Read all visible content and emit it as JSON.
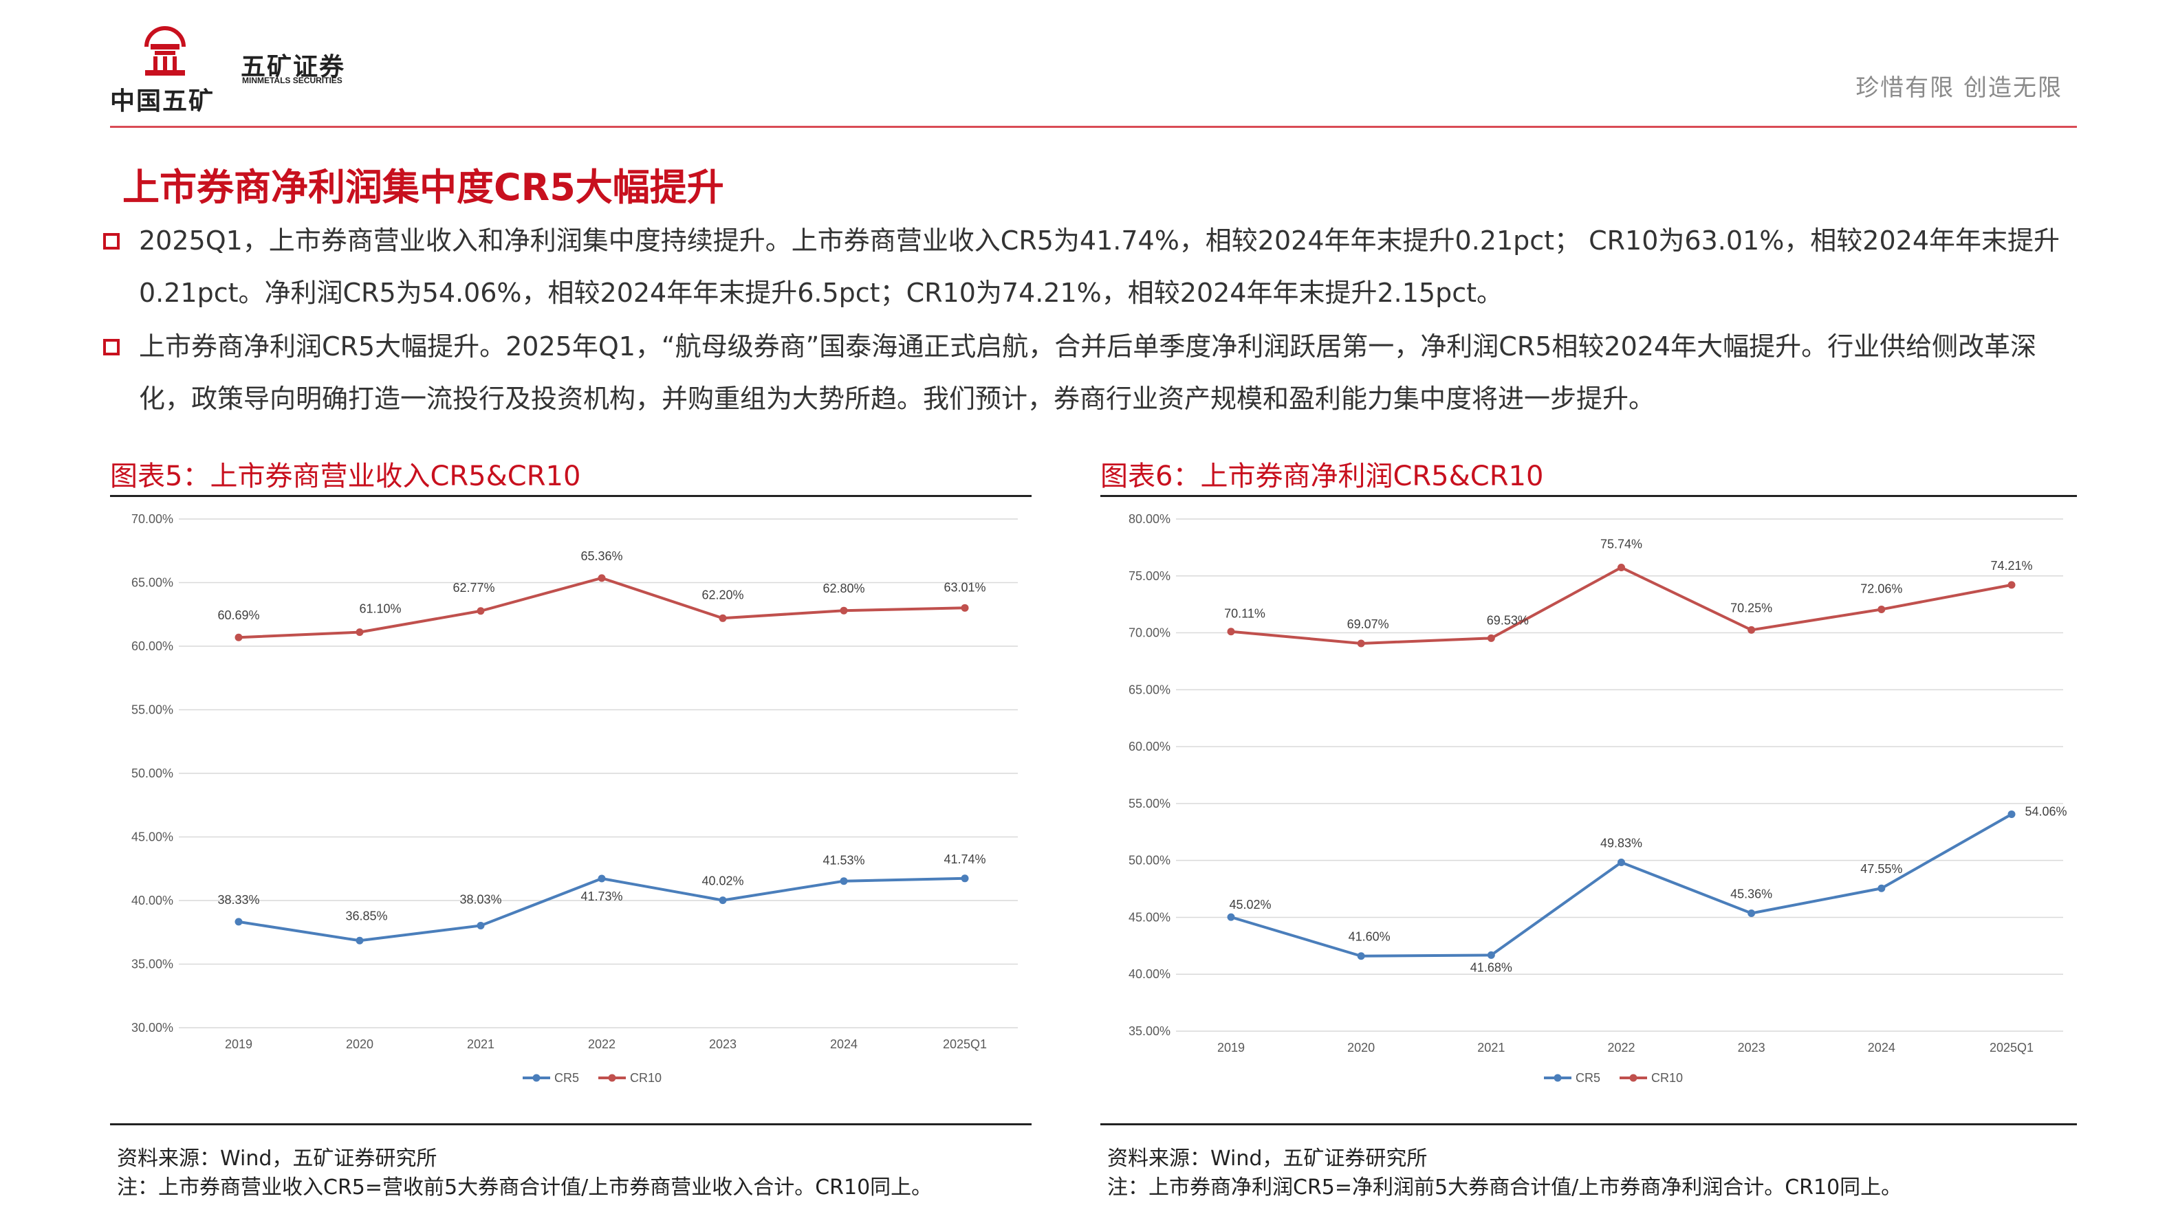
{
  "header": {
    "logo_cn": "中国五矿",
    "brand_cn": "五矿证券",
    "brand_en": "MINMETALS SECURITIES",
    "slogan": "珍惜有限  创造无限",
    "accent_color": "#c8101e"
  },
  "page_title": "上市券商净利润集中度CR5大幅提升",
  "bullets": [
    "2025Q1，上市券商营业收入和净利润集中度持续提升。上市券商营业收入CR5为41.74%，相较2024年年末提升0.21pct；  CR10为63.01%，相较2024年年末提升0.21pct。净利润CR5为54.06%，相较2024年年末提升6.5pct；CR10为74.21%，相较2024年年末提升2.15pct。",
    "上市券商净利润CR5大幅提升。2025年Q1，“航母级券商”国泰海通正式启航，合并后单季度净利润跃居第一，净利润CR5相较2024年大幅提升。行业供给侧改革深化，政策导向明确打造一流投行及投资机构，并购重组为大势所趋。我们预计，券商行业资产规模和盈利能力集中度将进一步提升。"
  ],
  "charts": [
    {
      "caption": "图表5：上市券商营业收入CR5&CR10",
      "source": "资料来源：Wind，五矿证券研究所",
      "note": "注：上市券商营业收入CR5=营收前5大券商合计值/上市券商营业收入合计。CR10同上。"
    },
    {
      "caption": "图表6：上市券商净利润CR5&CR10",
      "source": "资料来源：Wind，五矿证券研究所",
      "note": "注：上市券商净利润CR5=净利润前5大券商合计值/上市券商净利润合计。CR10同上。"
    }
  ],
  "chart_data": [
    {
      "type": "line",
      "categories": [
        "2019",
        "2020",
        "2021",
        "2022",
        "2023",
        "2024",
        "2025Q1"
      ],
      "series": [
        {
          "name": "CR5",
          "color": "#4a7ebb",
          "values": [
            38.33,
            36.85,
            38.03,
            41.73,
            40.02,
            41.53,
            41.74
          ],
          "labels": [
            "38.33%",
            "36.85%",
            "38.03%",
            "41.73%",
            "40.02%",
            "41.53%",
            "41.74%"
          ]
        },
        {
          "name": "CR10",
          "color": "#c0504d",
          "values": [
            60.69,
            61.1,
            62.77,
            65.36,
            62.2,
            62.8,
            63.01
          ],
          "labels": [
            "60.69%",
            "61.10%",
            "62.77%",
            "65.36%",
            "62.20%",
            "62.80%",
            "63.01%"
          ]
        }
      ],
      "ylim": [
        30,
        70
      ],
      "yticks": [
        "30.00%",
        "35.00%",
        "40.00%",
        "45.00%",
        "50.00%",
        "55.00%",
        "60.00%",
        "65.00%",
        "70.00%"
      ],
      "grid": true,
      "legend": "bottom"
    },
    {
      "type": "line",
      "categories": [
        "2019",
        "2020",
        "2021",
        "2022",
        "2023",
        "2024",
        "2025Q1"
      ],
      "series": [
        {
          "name": "CR5",
          "color": "#4a7ebb",
          "values": [
            45.02,
            41.6,
            41.68,
            49.83,
            45.36,
            47.55,
            54.06
          ],
          "labels": [
            "45.02%",
            "41.60%",
            "41.68%",
            "49.83%",
            "45.36%",
            "47.55%",
            "54.06%"
          ]
        },
        {
          "name": "CR10",
          "color": "#c0504d",
          "values": [
            70.11,
            69.07,
            69.53,
            75.74,
            70.25,
            72.06,
            74.21
          ],
          "labels": [
            "70.11%",
            "69.07%",
            "69.53%",
            "75.74%",
            "70.25%",
            "72.06%",
            "74.21%"
          ]
        }
      ],
      "ylim": [
        35,
        80
      ],
      "yticks": [
        "35.00%",
        "40.00%",
        "45.00%",
        "50.00%",
        "55.00%",
        "60.00%",
        "65.00%",
        "70.00%",
        "75.00%",
        "80.00%"
      ],
      "grid": true,
      "legend": "bottom"
    }
  ]
}
